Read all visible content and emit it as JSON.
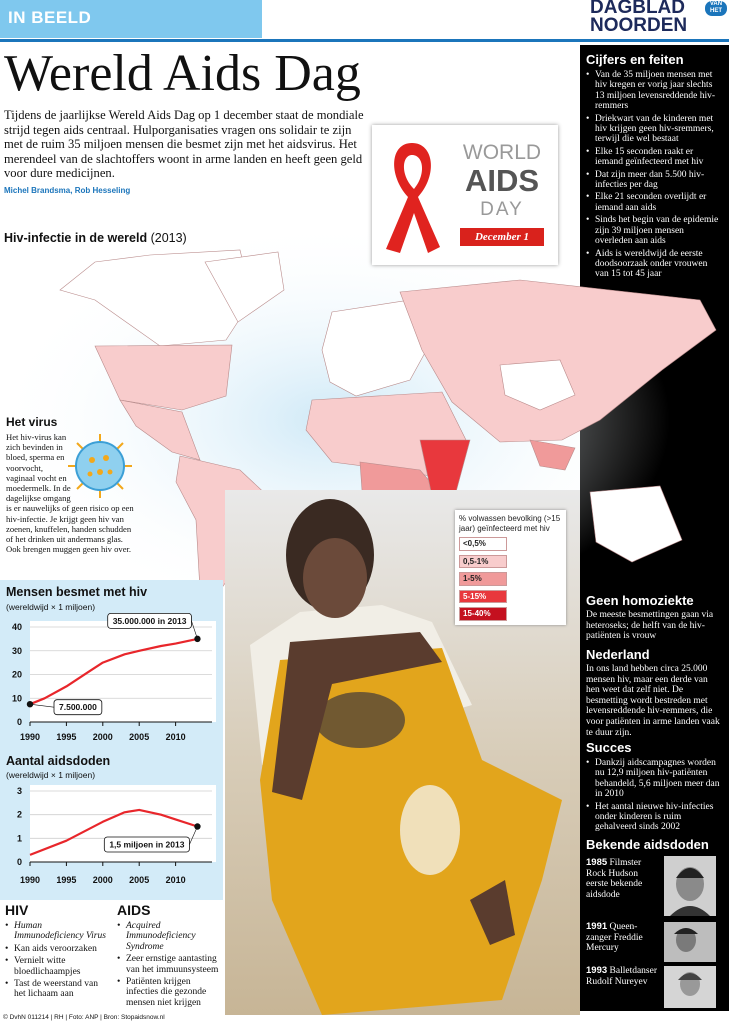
{
  "header": {
    "section": "IN BEELD",
    "logo": [
      "DAGBLAD",
      "VAN HET",
      "NOORDEN"
    ]
  },
  "title": "Wereld Aids Dag",
  "intro": "Tijdens de jaarlijkse Wereld Aids Dag op 1 december staat de mondiale strijd tegen aids centraal. Hulporganisaties vragen ons solidair te zijn met de ruim 35 miljoen mensen die besmet zijn met het aidsvirus. Het merendeel van de slachtoffers woont in arme landen en heeft geen geld voor dure medicijnen.",
  "byline": "Michel Brandsma, Rob Hesseling",
  "badge": {
    "lines": [
      "WORLD",
      "AIDS",
      "DAY"
    ],
    "ribbon": "December 1"
  },
  "map": {
    "title": "Hiv-infectie in de wereld",
    "year": "(2013)",
    "legend": {
      "title": "% volwassen bevolking (>15 jaar) geïnfecteerd met hiv",
      "items": [
        {
          "label": "<0,5%",
          "color": "#ffffff"
        },
        {
          "label": "0,5-1%",
          "color": "#f8cccc"
        },
        {
          "label": "1-5%",
          "color": "#f09a9a"
        },
        {
          "label": "5-15%",
          "color": "#e8383d"
        },
        {
          "label": "15-40%",
          "color": "#c4101f"
        }
      ]
    }
  },
  "virus": {
    "title": "Het virus",
    "text": "Het hiv-virus kan zich bevinden in bloed, sperma en voorvocht, vaginaal vocht en moedermelk. In de dagelijkse omgang is er nauwelijks of geen risico op een hiv-infectie. Je krijgt geen hiv van zoenen, knuffelen, handen schudden of het drinken uit andermans glas. Ook brengen muggen geen hiv over."
  },
  "facts": {
    "title": "Cijfers en feiten",
    "items": [
      "Van de 35 miljoen mensen met hiv kregen er vorig jaar slechts 13 miljoen levensreddende hiv-remmers",
      "Driekwart van de kinderen met hiv krijgen geen hiv-sremmers, terwijl die wel bestaat",
      "Elke 15 seconden raakt er iemand geïnfecteerd met hiv",
      "Dat zijn meer dan 5.500 hiv-infecties per dag",
      "Elke 21 seconden overlijdt er iemand aan aids",
      "Sinds het begin van de epidemie zijn 39 miljoen mensen overleden aan aids",
      "Aids is wereldwijd de eerste doodsoorzaak onder vrouwen van 15 tot 45 jaar"
    ]
  },
  "homo": {
    "title": "Geen homoziekte",
    "text": "De meeste besmettingen gaan via heteroseks; de helft van de hiv-patiënten is vrouw"
  },
  "nederland": {
    "title": "Nederland",
    "text": "In ons land hebben circa 25.000 mensen hiv, maar een derde van hen weet dat zelf niet. De besmetting wordt bestreden met levensreddende hiv-remmers, die voor patiënten in arme landen vaak te duur zijn."
  },
  "succes": {
    "title": "Succes",
    "items": [
      "Dankzij aidscampagnes worden nu 12,9 miljoen hiv-patiënten behandeld, 5,6 miljoen meer dan in 2010",
      "Het aantal nieuwe hiv-infecties onder kinderen is ruim gehalveerd sinds 2002"
    ]
  },
  "famous": {
    "title": "Bekende aidsdoden",
    "items": [
      {
        "year": "1985",
        "text": "Filmster Rock Hudson eerste bekende aidsdode"
      },
      {
        "year": "1991",
        "text": "Queen-zanger Freddie Mercury"
      },
      {
        "year": "1993",
        "text": "Balletdanser Rudolf Nureyev"
      }
    ]
  },
  "hiv": {
    "title": "HIV",
    "subtitle": "Human Immunodeficiency Virus",
    "items": [
      "Kan aids veroorzaken",
      "Vernielt witte bloedlichaampjes",
      "Tast de weerstand van het lichaam aan"
    ]
  },
  "aids": {
    "title": "AIDS",
    "subtitle": "Acquired Immunodeficiency Syndrome",
    "items": [
      "Zeer ernstige aantasting van het immuunsysteem",
      "Patiënten krijgen infecties die gezonde mensen niet krijgen"
    ]
  },
  "footer": "© DvhN 011214 | RH | Foto: ANP | Bron: Stopaidsnow.nl",
  "chart_data": [
    {
      "type": "line",
      "title": "Mensen besmet met hiv",
      "subtitle": "(wereldwijd × 1 miljoen)",
      "x": [
        1990,
        1992,
        1995,
        1998,
        2000,
        2003,
        2005,
        2008,
        2010,
        2013
      ],
      "values": [
        7.5,
        10,
        15,
        21,
        25,
        28.5,
        30,
        32,
        33,
        35
      ],
      "color": "#e8262b",
      "xlim": [
        1990,
        2015
      ],
      "ylim": [
        0,
        40
      ],
      "xticks": [
        1990,
        1995,
        2000,
        2005,
        2010
      ],
      "yticks": [
        0,
        10,
        20,
        30,
        40
      ],
      "grid": true,
      "annotations": [
        {
          "text": "35.000.000 in 2013",
          "x": 2013,
          "y": 35
        },
        {
          "text": "7.500.000",
          "x": 1990,
          "y": 7.5
        }
      ]
    },
    {
      "type": "line",
      "title": "Aantal aidsdoden",
      "subtitle": "(wereldwijd × 1 miljoen)",
      "x": [
        1990,
        1995,
        2000,
        2003,
        2005,
        2008,
        2010,
        2013
      ],
      "values": [
        0.3,
        0.9,
        1.7,
        2.1,
        2.2,
        2.0,
        1.8,
        1.5
      ],
      "color": "#e8262b",
      "xlim": [
        1990,
        2015
      ],
      "ylim": [
        0,
        3
      ],
      "xticks": [
        1990,
        1995,
        2000,
        2005,
        2010
      ],
      "yticks": [
        0,
        1,
        2,
        3
      ],
      "grid": true,
      "annotations": [
        {
          "text": "1,5 miljoen in 2013",
          "x": 2013,
          "y": 1.5
        }
      ]
    }
  ]
}
